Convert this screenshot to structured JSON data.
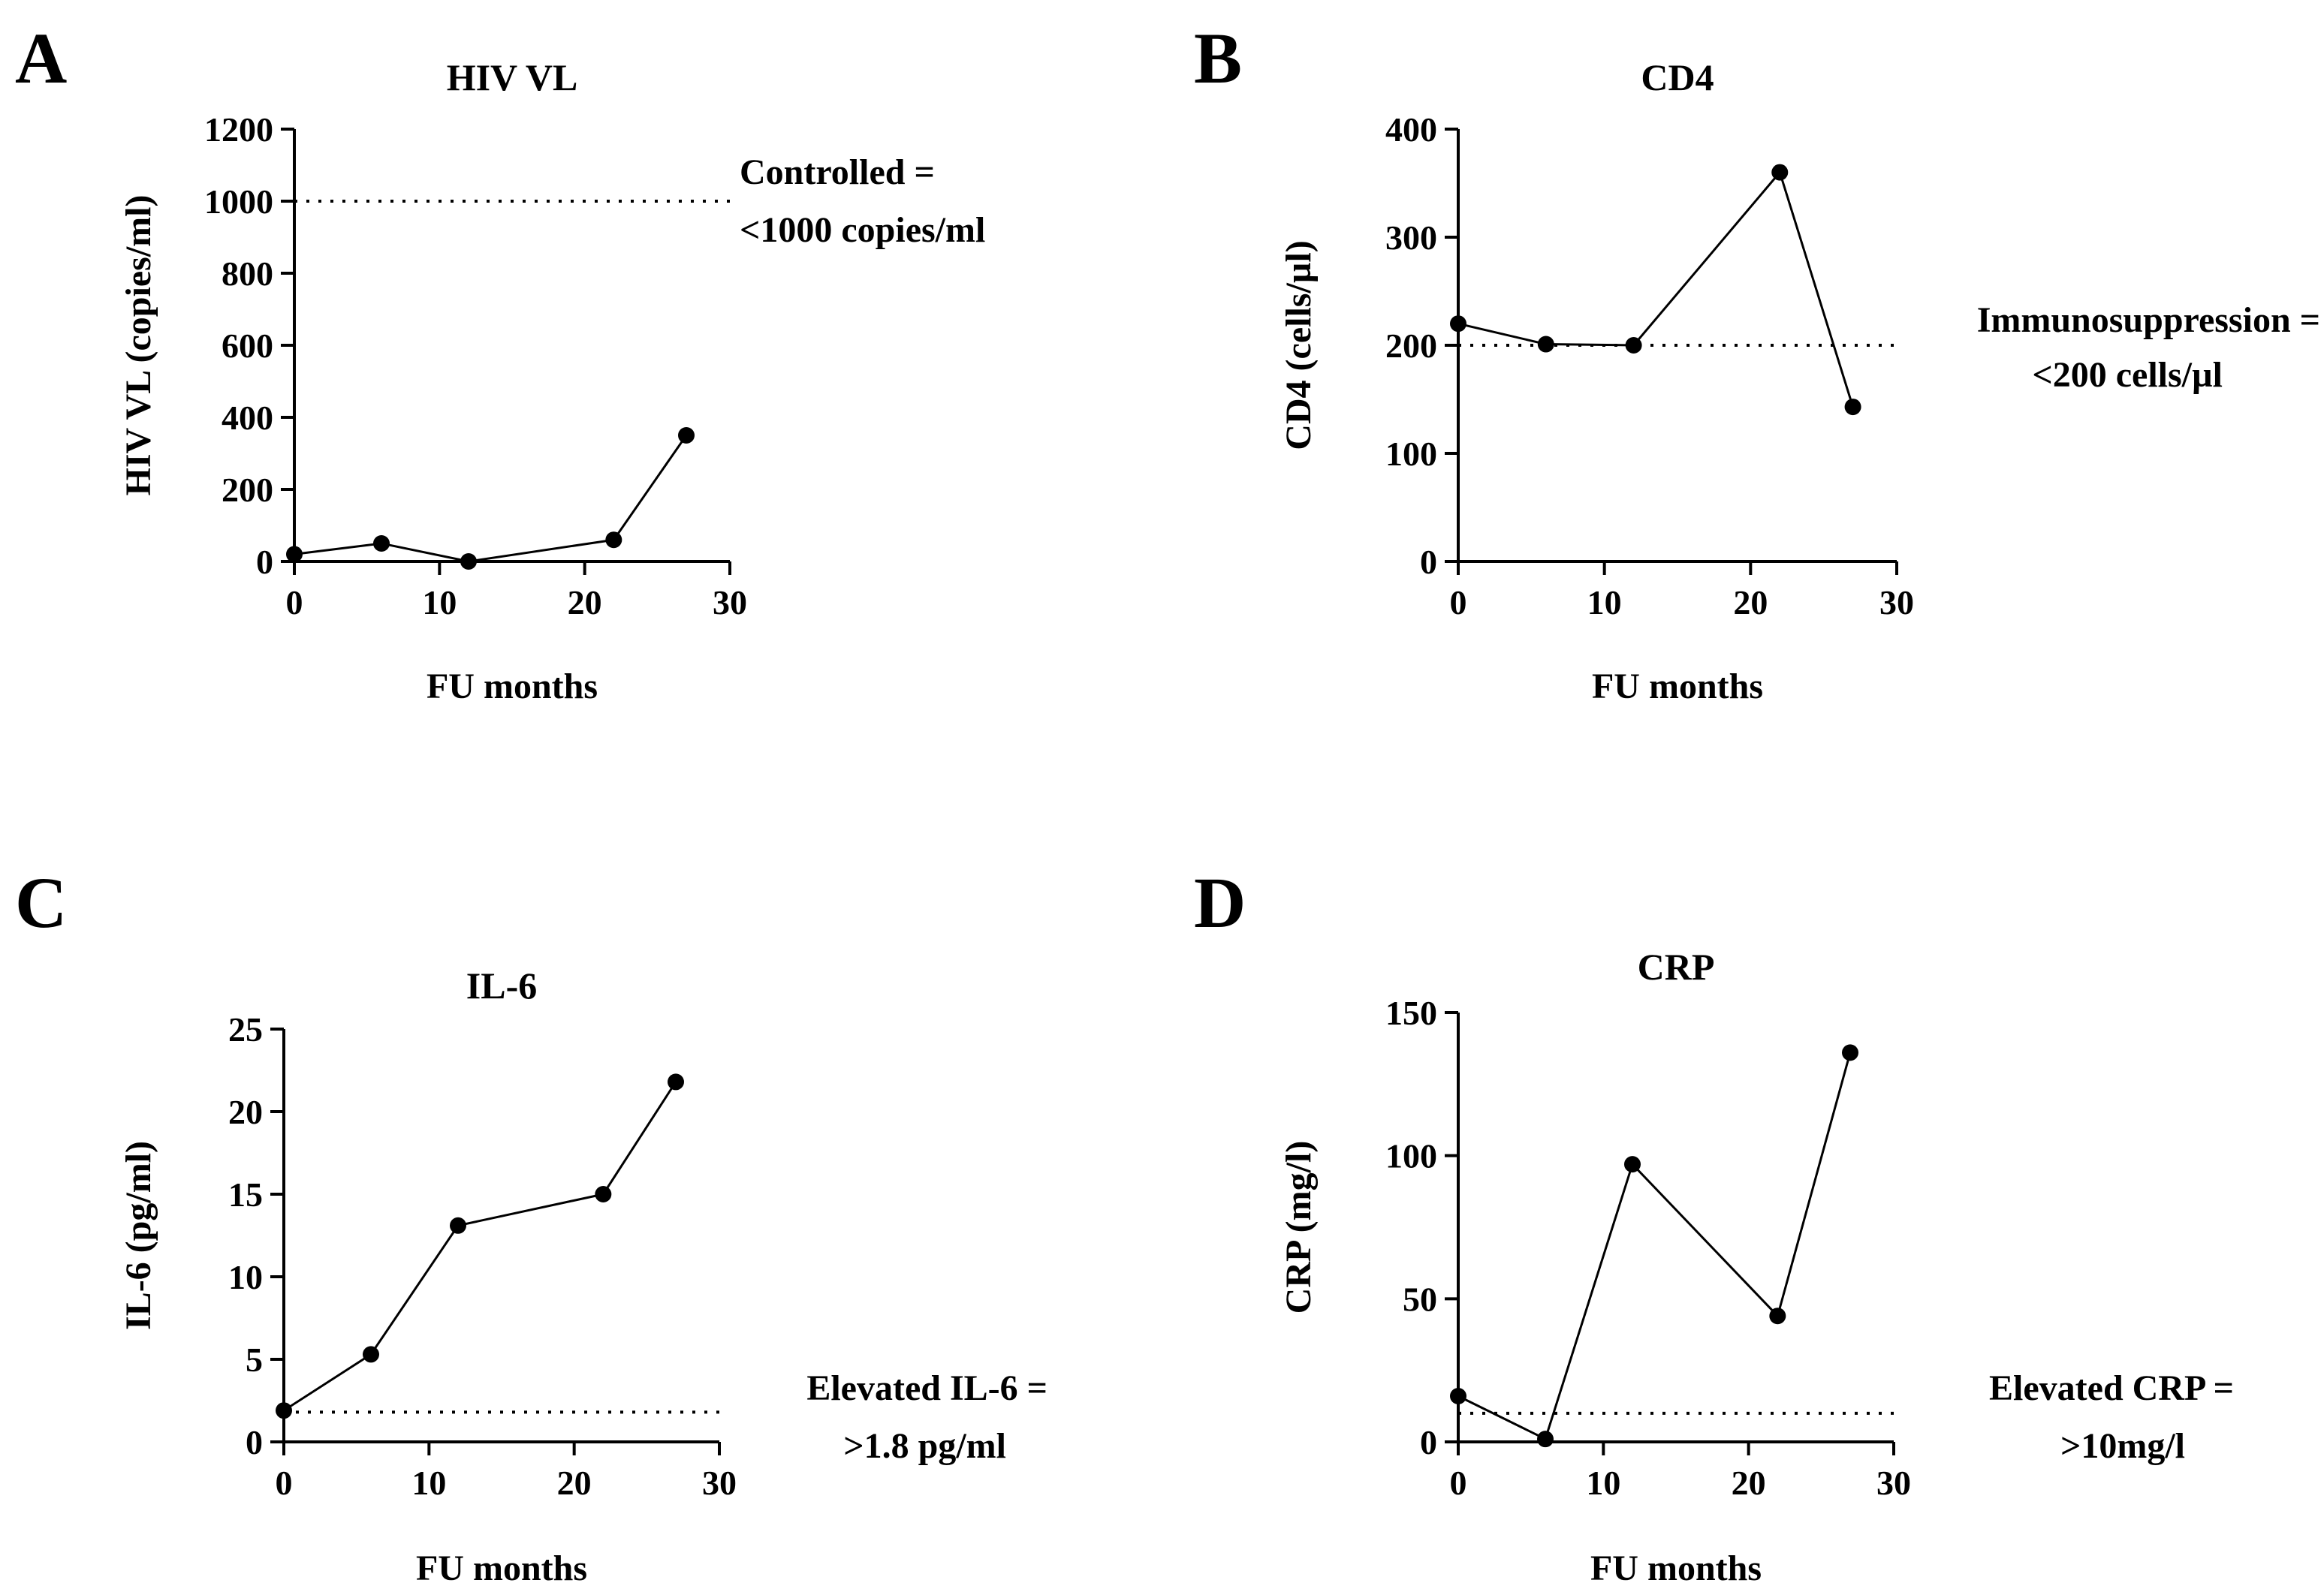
{
  "chart_data": [
    {
      "panel": "A",
      "type": "line",
      "title": "HIV VL",
      "xlabel": "FU months",
      "ylabel": "HIV VL (copies/ml)",
      "xlim": [
        0,
        30
      ],
      "ylim": [
        0,
        1200
      ],
      "xticks": [
        0,
        10,
        20,
        30
      ],
      "yticks": [
        0,
        200,
        400,
        600,
        800,
        1000,
        1200
      ],
      "x": [
        0,
        6,
        12,
        22,
        27
      ],
      "values": [
        20,
        50,
        0,
        60,
        350
      ],
      "reference": {
        "value": 1000,
        "label_lines": [
          "Controlled =",
          "<1000 copies/ml"
        ],
        "label_position": "top-right"
      }
    },
    {
      "panel": "B",
      "type": "line",
      "title": "CD4",
      "xlabel": "FU months",
      "ylabel": "CD4 (cells/µl)",
      "xlim": [
        0,
        30
      ],
      "ylim": [
        0,
        400
      ],
      "xticks": [
        0,
        10,
        20,
        30
      ],
      "yticks": [
        0,
        100,
        200,
        300,
        400
      ],
      "x": [
        0,
        6,
        12,
        22,
        27
      ],
      "values": [
        220,
        201,
        200,
        360,
        143
      ],
      "reference": {
        "value": 200,
        "label_lines": [
          "Immunosuppression =",
          "<200 cells/µl"
        ],
        "label_position": "middle-right"
      }
    },
    {
      "panel": "C",
      "type": "line",
      "title": "IL-6",
      "xlabel": "FU months",
      "ylabel": "IL-6 (pg/ml)",
      "xlim": [
        0,
        30
      ],
      "ylim": [
        0,
        25
      ],
      "xticks": [
        0,
        10,
        20,
        30
      ],
      "yticks": [
        0,
        5,
        10,
        15,
        20,
        25
      ],
      "x": [
        0,
        6,
        12,
        22,
        27
      ],
      "values": [
        1.9,
        5.3,
        13.1,
        15.0,
        21.8
      ],
      "reference": {
        "value": 1.8,
        "label_lines": [
          "Elevated IL-6 =",
          ">1.8 pg/ml"
        ],
        "label_position": "bottom-right"
      }
    },
    {
      "panel": "D",
      "type": "line",
      "title": "CRP",
      "xlabel": "FU months",
      "ylabel": "CRP (mg/l)",
      "xlim": [
        0,
        30
      ],
      "ylim": [
        0,
        150
      ],
      "xticks": [
        0,
        10,
        20,
        30
      ],
      "yticks": [
        0,
        50,
        100,
        150
      ],
      "x": [
        0,
        6,
        12,
        22,
        27
      ],
      "values": [
        16,
        1,
        97,
        44,
        136
      ],
      "reference": {
        "value": 10,
        "label_lines": [
          "Elevated CRP =",
          ">10mg/l"
        ],
        "label_position": "bottom-right"
      }
    }
  ]
}
